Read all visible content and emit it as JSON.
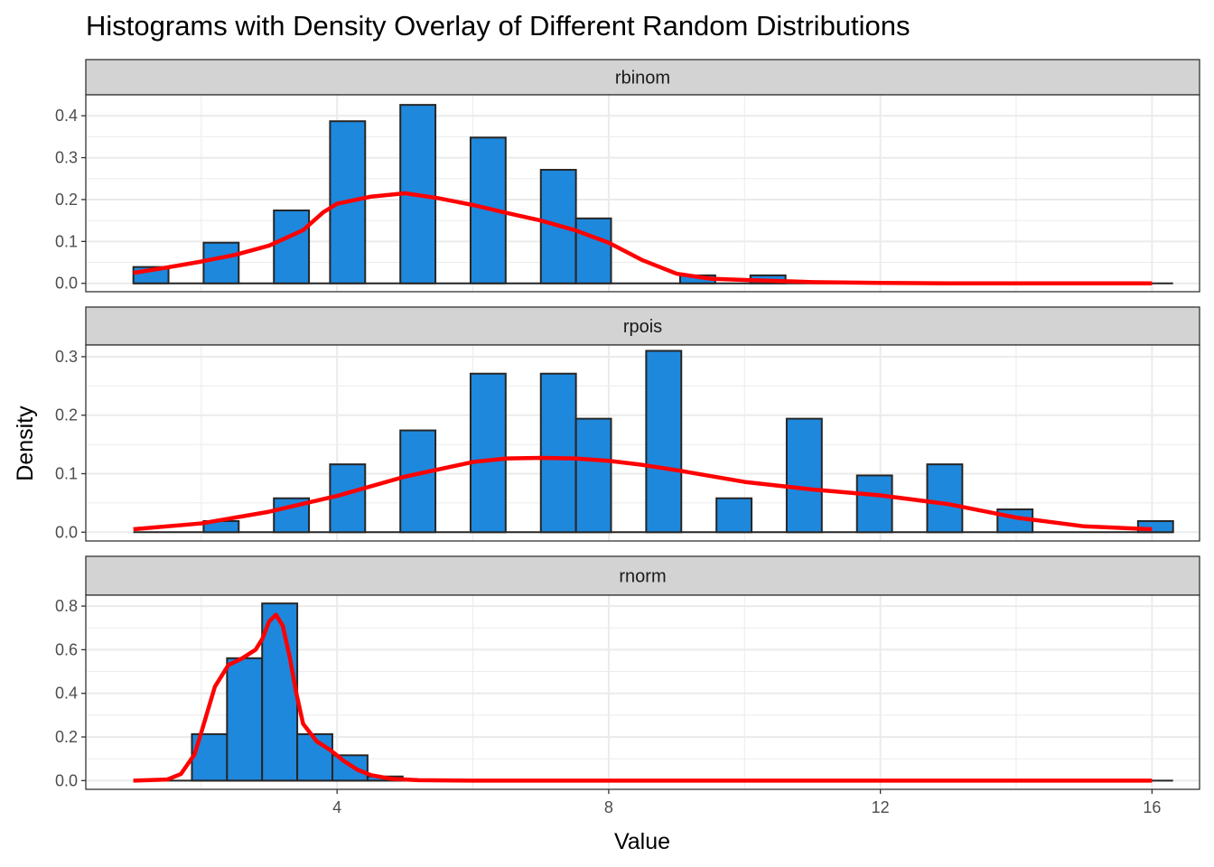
{
  "chart_data": {
    "type": "bar",
    "title": "Histograms with Density Overlay of Different Random Distributions",
    "xlabel": "Value",
    "ylabel": "Density",
    "xlim": [
      0.3,
      16.7
    ],
    "x_ticks": [
      4,
      8,
      12,
      16
    ],
    "grid": true,
    "legend": "none",
    "colors": {
      "bar_fill": "#1E88DD",
      "bar_outline": "#262626",
      "density_line": "#FF0000",
      "strip_bg": "#D3D3D3",
      "grid": "#EBEBEB"
    },
    "bin_width": 0.517,
    "panels": [
      {
        "name": "rbinom",
        "ylim": [
          -0.02,
          0.45
        ],
        "y_ticks": [
          0.0,
          0.1,
          0.2,
          0.3,
          0.4
        ],
        "y_tick_labels": [
          "0.0",
          "0.1",
          "0.2",
          "0.3",
          "0.4"
        ],
        "bins": [
          {
            "x": 1.259,
            "density": 0.039
          },
          {
            "x": 2.293,
            "density": 0.097
          },
          {
            "x": 3.328,
            "density": 0.174
          },
          {
            "x": 4.155,
            "density": 0.387
          },
          {
            "x": 5.19,
            "density": 0.426
          },
          {
            "x": 6.224,
            "density": 0.348
          },
          {
            "x": 7.259,
            "density": 0.271
          },
          {
            "x": 7.776,
            "density": 0.155
          },
          {
            "x": 9.31,
            "density": 0.019
          },
          {
            "x": 10.345,
            "density": 0.019
          }
        ],
        "density_curve": {
          "x": [
            1.0,
            1.5,
            2.0,
            2.5,
            3.0,
            3.5,
            3.8,
            4.0,
            4.5,
            5.0,
            5.5,
            6.0,
            6.5,
            7.0,
            7.5,
            8.0,
            8.5,
            9.0,
            9.5,
            10.0,
            11.0,
            12.0,
            13.0,
            14.0,
            15.0,
            16.0
          ],
          "y": [
            0.025,
            0.038,
            0.052,
            0.068,
            0.09,
            0.127,
            0.17,
            0.19,
            0.207,
            0.215,
            0.203,
            0.187,
            0.168,
            0.15,
            0.127,
            0.097,
            0.055,
            0.023,
            0.011,
            0.008,
            0.003,
            0.001,
            0.0,
            0.0,
            0.0,
            0.0
          ]
        }
      },
      {
        "name": "rpois",
        "ylim": [
          -0.015,
          0.32
        ],
        "y_ticks": [
          0.0,
          0.1,
          0.2,
          0.3
        ],
        "y_tick_labels": [
          "0.0",
          "0.1",
          "0.2",
          "0.3"
        ],
        "bins": [
          {
            "x": 2.293,
            "density": 0.019
          },
          {
            "x": 3.328,
            "density": 0.058
          },
          {
            "x": 4.155,
            "density": 0.116
          },
          {
            "x": 5.19,
            "density": 0.174
          },
          {
            "x": 6.224,
            "density": 0.271
          },
          {
            "x": 7.259,
            "density": 0.271
          },
          {
            "x": 7.776,
            "density": 0.194
          },
          {
            "x": 8.81,
            "density": 0.31
          },
          {
            "x": 9.845,
            "density": 0.058
          },
          {
            "x": 10.879,
            "density": 0.194
          },
          {
            "x": 11.914,
            "density": 0.097
          },
          {
            "x": 12.948,
            "density": 0.116
          },
          {
            "x": 13.983,
            "density": 0.039
          },
          {
            "x": 16.052,
            "density": 0.019
          }
        ],
        "density_curve": {
          "x": [
            1.0,
            2.0,
            3.0,
            4.0,
            5.0,
            6.0,
            6.5,
            7.0,
            7.5,
            8.0,
            8.5,
            9.0,
            10.0,
            11.0,
            12.0,
            13.0,
            14.0,
            15.0,
            16.0
          ],
          "y": [
            0.005,
            0.015,
            0.035,
            0.062,
            0.095,
            0.12,
            0.126,
            0.127,
            0.126,
            0.122,
            0.115,
            0.106,
            0.086,
            0.073,
            0.063,
            0.048,
            0.025,
            0.01,
            0.005
          ]
        }
      },
      {
        "name": "rnorm",
        "ylim": [
          -0.04,
          0.85
        ],
        "y_ticks": [
          0.0,
          0.2,
          0.4,
          0.6,
          0.8
        ],
        "y_tick_labels": [
          "0.0",
          "0.2",
          "0.4",
          "0.6",
          "0.8"
        ],
        "bins": [
          {
            "x": 2.121,
            "density": 0.213
          },
          {
            "x": 2.638,
            "density": 0.561
          },
          {
            "x": 3.155,
            "density": 0.812
          },
          {
            "x": 3.672,
            "density": 0.213
          },
          {
            "x": 4.19,
            "density": 0.116
          },
          {
            "x": 4.707,
            "density": 0.019
          }
        ],
        "density_curve": {
          "x": [
            1.0,
            1.5,
            1.7,
            1.9,
            2.0,
            2.2,
            2.4,
            2.6,
            2.8,
            2.9,
            3.0,
            3.1,
            3.2,
            3.3,
            3.4,
            3.5,
            3.7,
            3.9,
            4.1,
            4.3,
            4.5,
            4.8,
            5.2,
            6.0,
            8.0,
            12.0,
            16.0
          ],
          "y": [
            0.0,
            0.005,
            0.03,
            0.12,
            0.22,
            0.43,
            0.53,
            0.56,
            0.6,
            0.65,
            0.73,
            0.76,
            0.71,
            0.57,
            0.4,
            0.26,
            0.18,
            0.14,
            0.09,
            0.05,
            0.025,
            0.008,
            0.002,
            0.0,
            0.0,
            0.0,
            0.0
          ]
        }
      }
    ]
  }
}
